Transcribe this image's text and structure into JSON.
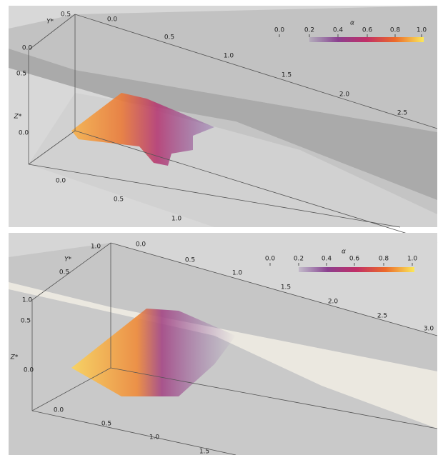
{
  "panels": [
    {
      "axis_labels": {
        "y": "Y*",
        "z": "Z*"
      },
      "y_ticks": [
        "0.5",
        "0.0"
      ],
      "z_ticks": [
        "0.5",
        "0.0"
      ],
      "x_ticks_top": [
        "0.0",
        "0.5",
        "1.0",
        "1.5",
        "2.0",
        "2.5"
      ],
      "x_ticks_bottom": [
        "0.0",
        "0.5",
        "1.0"
      ],
      "colorbar": {
        "title": "α",
        "ticks": [
          "0.0",
          "0.2",
          "0.4",
          "0.6",
          "0.8",
          "1.0"
        ]
      }
    },
    {
      "axis_labels": {
        "y": "Y*",
        "z": "Z*"
      },
      "y_ticks": [
        "1.0",
        "0.5"
      ],
      "z_ticks": [
        "1.0",
        "0.5",
        "0.0"
      ],
      "x_ticks_top": [
        "0.0",
        "0.5",
        "1.0",
        "1.5",
        "2.0",
        "2.5",
        "3.0"
      ],
      "x_ticks_bottom": [
        "0.0",
        "0.5",
        "1.0",
        "1.5"
      ],
      "colorbar": {
        "title": "α",
        "ticks": [
          "0.0",
          "0.2",
          "0.4",
          "0.6",
          "0.8",
          "1.0"
        ]
      }
    }
  ]
}
